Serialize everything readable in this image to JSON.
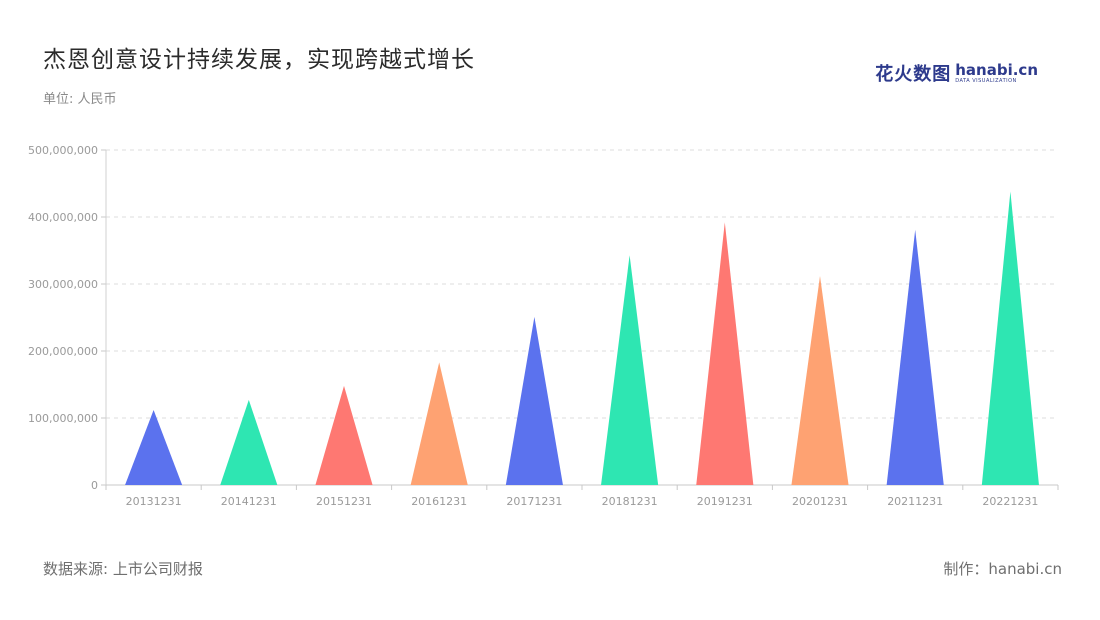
{
  "header": {
    "title": "杰恩创意设计持续发展，实现跨越式增长",
    "unit": "单位: 人民币"
  },
  "logo": {
    "cn": "花火数图",
    "en": "hanabi.cn",
    "sub": "DATA VISUALIZATION"
  },
  "footer": {
    "source": "数据来源: 上市公司财报",
    "credit": "制作：hanabi.cn"
  },
  "colors": {
    "blue": "#5b72ee",
    "green": "#2ee6b2",
    "red": "#fe7872",
    "orange": "#fea272"
  },
  "chart_data": {
    "type": "bar",
    "mark": "triangle",
    "categories": [
      "20131231",
      "20141231",
      "20151231",
      "20161231",
      "20171231",
      "20181231",
      "20191231",
      "20201231",
      "20211231",
      "20221231"
    ],
    "values": [
      112000000,
      127000000,
      148000000,
      183000000,
      251000000,
      343000000,
      392000000,
      312000000,
      381000000,
      438000000
    ],
    "bar_colors": [
      "#5b72ee",
      "#2ee6b2",
      "#fe7872",
      "#fea272",
      "#5b72ee",
      "#2ee6b2",
      "#fe7872",
      "#fea272",
      "#5b72ee",
      "#2ee6b2"
    ],
    "y_ticks": [
      "0",
      "100,000,000",
      "200,000,000",
      "300,000,000",
      "400,000,000",
      "500,000,000"
    ],
    "ylim": [
      0,
      500000000
    ],
    "grid": true,
    "legend": "none"
  }
}
